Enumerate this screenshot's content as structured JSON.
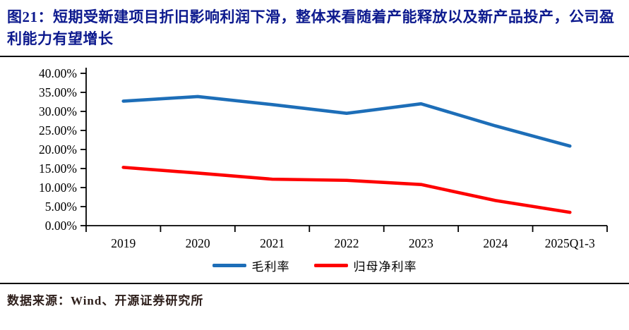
{
  "title": {
    "tag": "图21：",
    "text": "短期受新建项目折旧影响利润下滑，整体来看随着产能释放以及新产品投产，公司盈利能力有望增长"
  },
  "source": {
    "label": "数据来源：",
    "text": "Wind、开源证券研究所"
  },
  "colors": {
    "title_navy": "#0d1a8e",
    "axis_black": "#000000",
    "gross_margin_blue": "#1d6eb8",
    "net_margin_red": "#fe0000",
    "source_dark": "#2e1f1b"
  },
  "chart_data": {
    "type": "line",
    "categories": [
      "2019",
      "2020",
      "2021",
      "2022",
      "2023",
      "2024",
      "2025Q1-3"
    ],
    "series": [
      {
        "name": "毛利率",
        "color": "#1d6eb8",
        "values": [
          32.7,
          33.9,
          31.8,
          29.5,
          32.0,
          26.2,
          20.9
        ]
      },
      {
        "name": "归母净利率",
        "color": "#fe0000",
        "values": [
          15.3,
          13.8,
          12.2,
          11.9,
          10.8,
          6.6,
          3.5
        ]
      }
    ],
    "title": "",
    "xlabel": "",
    "ylabel": "",
    "ylim": [
      0,
      40
    ],
    "y_tick_step": 5,
    "y_tick_labels": [
      "0.00%",
      "5.00%",
      "10.00%",
      "15.00%",
      "20.00%",
      "25.00%",
      "30.00%",
      "35.00%",
      "40.00%"
    ],
    "grid": false,
    "legend_position": "bottom"
  }
}
